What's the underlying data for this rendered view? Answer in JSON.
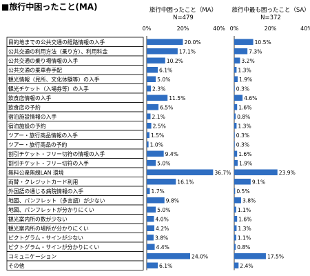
{
  "title": "■旅行中困ったこと(MA)",
  "panels": [
    {
      "heading": "旅行中困ったこと（MA）",
      "n": "N=479"
    },
    {
      "heading": "旅行中最も困ったこと（SA）",
      "n": "N=372"
    }
  ],
  "chart_data": [
    {
      "type": "bar",
      "orientation": "horizontal",
      "title": "旅行中困ったこと（MA）",
      "subtitle": "N=479",
      "xlim": [
        0,
        40
      ],
      "xticks": [
        "0%",
        "20%",
        "40%"
      ],
      "unit": "%",
      "bar_color": "#2f6ec2",
      "categories": [
        "目的地までの公共交通の経路情報の入手",
        "公共交通の利用方法（乗り方）、利用料金",
        "公共交通の乗り場情報の入手",
        "公共交通の乗車券手配",
        "観光情報（見所、文化体験等）の入手",
        "観光チケット（入場券等）の入手",
        "飲食店情報の入手",
        "飲食店の予約",
        "宿泊施設情報の入手",
        "宿泊施設の予約",
        "ツアー・旅行商品情報の入手",
        "ツアー・旅行商品の予約",
        "割引チケット・フリー切符の情報の入手",
        "割引チケット・フリー切符の入手",
        "無料公衆無線LAN 環境",
        "両替・クレジットカード利用",
        "外国語の通じる病院情報の入手",
        "地図、パンフレット（多言語）が少ない",
        "地図、パンフレットが分かりにくい",
        "観光案内所の数が少ない",
        "観光案内所の場所が分かりにくい",
        "ピクトグラム・サインが少ない",
        "ピクトグラム・サインが分かりにくい",
        "コミュニケーション",
        "その他"
      ],
      "values": [
        20.0,
        17.1,
        10.2,
        6.1,
        5.0,
        2.3,
        11.5,
        6.5,
        2.1,
        2.5,
        1.5,
        1.0,
        9.4,
        5.0,
        36.7,
        16.1,
        1.7,
        9.8,
        5.0,
        4.0,
        4.2,
        3.8,
        4.4,
        24.0,
        6.1
      ],
      "labels": [
        "20.0%",
        "17.1%",
        "10.2%",
        "6.1%",
        "5.0%",
        "2.3%",
        "11.5%",
        "6.5%",
        "2.1%",
        "2.5%",
        "1.5%",
        "1.0%",
        "9.4%",
        "5.0%",
        "36.7%",
        "16.1%",
        "1.7%",
        "9.8%",
        "5.0%",
        "4.0%",
        "4.2%",
        "3.8%",
        "4.4%",
        "24.0%",
        "6.1%"
      ]
    },
    {
      "type": "bar",
      "orientation": "horizontal",
      "title": "旅行中最も困ったこと（SA）",
      "subtitle": "N=372",
      "xlim": [
        0,
        40
      ],
      "xticks": [
        "0%",
        "20%",
        "40%"
      ],
      "unit": "%",
      "bar_color": "#2f6ec2",
      "values": [
        10.5,
        7.3,
        3.2,
        1.3,
        1.9,
        0.3,
        4.6,
        1.6,
        0.8,
        1.3,
        0.3,
        0.3,
        1.6,
        1.9,
        23.9,
        9.1,
        0.5,
        3.8,
        1.1,
        1.6,
        1.3,
        1.1,
        0.8,
        17.5,
        2.4
      ],
      "labels": [
        "10.5%",
        "7.3%",
        "3.2%",
        "1.3%",
        "1.9%",
        "0.3%",
        "4.6%",
        "1.6%",
        "0.8%",
        "1.3%",
        "0.3%",
        "0.3%",
        "1.6%",
        "1.9%",
        "23.9%",
        "9.1%",
        "0.5%",
        "3.8%",
        "1.1%",
        "1.6%",
        "1.3%",
        "1.1%",
        "0.8%",
        "17.5%",
        "2.4%"
      ]
    }
  ]
}
